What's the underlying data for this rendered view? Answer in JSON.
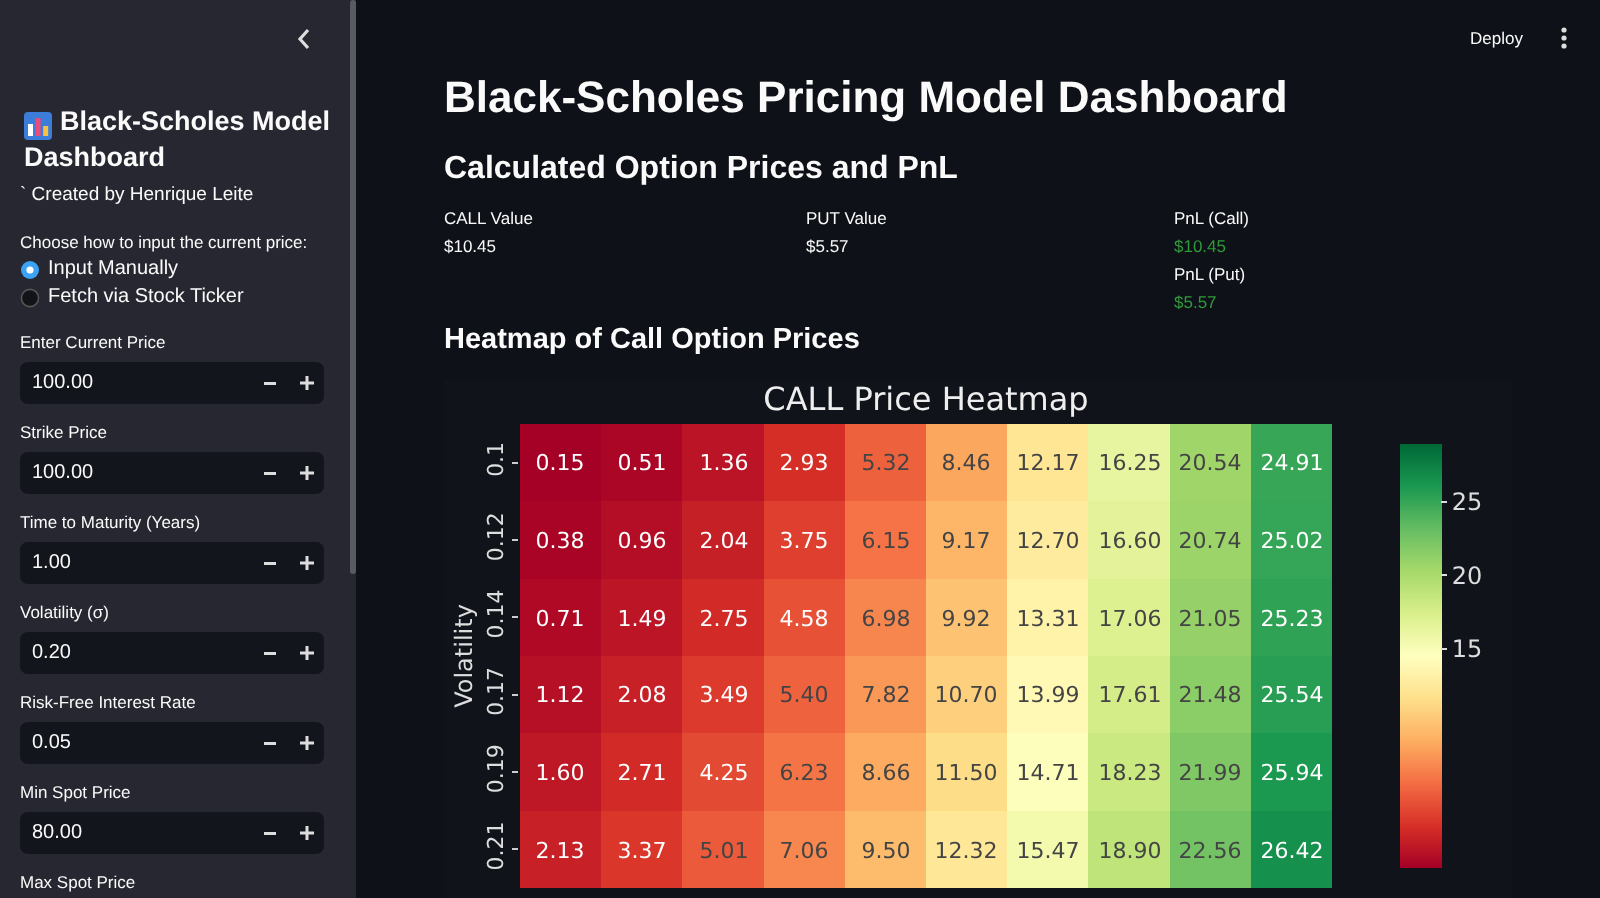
{
  "chart_data": [
    {
      "type": "other",
      "title": "Black-Scholes Model Dashboard",
      "annotations": [
        "` Created by Henrique Leite",
        "Choose how to input the current price:",
        "Input Manually",
        "Fetch via Stock Ticker",
        "Enter Current Price",
        "100.00",
        "Strike Price",
        "100.00",
        "Time to Maturity (Years)",
        "1.00",
        "Volatility (σ)",
        "0.20",
        "Risk-Free Interest Rate",
        "0.05",
        "Min Spot Price",
        "80.00",
        "Max Spot Price"
      ]
    },
    {
      "type": "other",
      "title": "Black-Scholes Pricing Model Dashboard",
      "subtitle": "Calculated Option Prices and PnL",
      "annotations": [
        "CALL Value",
        "$10.45",
        "PUT Value",
        "$5.57",
        "PnL (Call)",
        "$10.45",
        "PnL (Put)",
        "$5.57",
        "Heatmap of Call Option Prices",
        "Deploy"
      ]
    },
    {
      "type": "heatmap",
      "title": "CALL Price Heatmap",
      "ylabel": "Volatility",
      "categories": [
        null,
        null,
        null,
        null,
        null,
        null,
        null,
        null,
        null,
        null
      ],
      "y_categories": [
        "0.1",
        "0.12",
        "0.14",
        "0.17",
        "0.19",
        "0.21"
      ],
      "cells": [
        [
          0.15,
          0.51,
          1.36,
          2.93,
          5.32,
          8.46,
          12.17,
          16.25,
          20.54,
          24.91
        ],
        [
          0.38,
          0.96,
          2.04,
          3.75,
          6.15,
          9.17,
          12.7,
          16.6,
          20.74,
          25.02
        ],
        [
          0.71,
          1.49,
          2.75,
          4.58,
          6.98,
          9.92,
          13.31,
          17.06,
          21.05,
          25.23
        ],
        [
          1.12,
          2.08,
          3.49,
          5.4,
          7.82,
          10.7,
          13.99,
          17.61,
          21.48,
          25.54
        ],
        [
          1.6,
          2.71,
          4.25,
          6.23,
          8.66,
          11.5,
          14.71,
          18.23,
          21.99,
          25.94
        ],
        [
          2.13,
          3.37,
          5.01,
          7.06,
          9.5,
          12.32,
          15.47,
          18.9,
          22.56,
          26.42
        ]
      ],
      "cell_labels": [
        [
          "0.15",
          "0.51",
          "1.36",
          "2.93",
          "5.32",
          "8.46",
          "12.17",
          "16.25",
          "20.54",
          "24.91"
        ],
        [
          "0.38",
          "0.96",
          "2.04",
          "3.75",
          "6.15",
          "9.17",
          "12.70",
          "16.60",
          "20.74",
          "25.02"
        ],
        [
          "0.71",
          "1.49",
          "2.75",
          "4.58",
          "6.98",
          "9.92",
          "13.31",
          "17.06",
          "21.05",
          "25.23"
        ],
        [
          "1.12",
          "2.08",
          "3.49",
          "5.40",
          "7.82",
          "10.70",
          "13.99",
          "17.61",
          "21.48",
          "25.54"
        ],
        [
          "1.60",
          "2.71",
          "4.25",
          "6.23",
          "8.66",
          "11.50",
          "14.71",
          "18.23",
          "21.99",
          "25.94"
        ],
        [
          "2.13",
          "3.37",
          "5.01",
          "7.06",
          "9.50",
          "12.32",
          "15.47",
          "18.90",
          "22.56",
          "26.42"
        ]
      ],
      "data_labels": true,
      "clim": [
        0.15,
        28.9
      ],
      "cticks": [
        15,
        20,
        25
      ],
      "tick_labels": "y"
    }
  ]
}
